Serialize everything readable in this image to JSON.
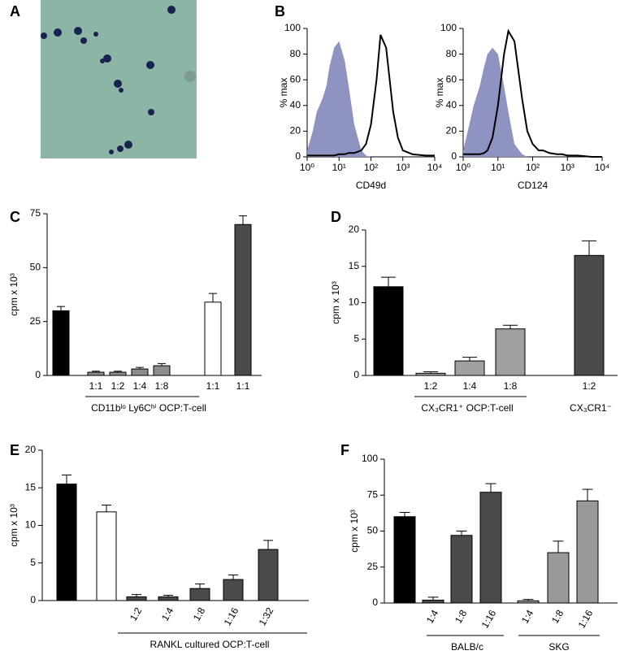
{
  "chart_data": [
    {
      "type": "image",
      "panel_label": "A"
    },
    {
      "type": "line",
      "panel_label": "B",
      "xlabel": "CD49d",
      "ylabel": "% max",
      "xscale": "log",
      "xlim": [
        1,
        10000
      ],
      "ylim": [
        0,
        100
      ],
      "xticks": [
        {
          "value": 1,
          "label": "10⁰"
        },
        {
          "value": 10,
          "label": "10¹"
        },
        {
          "value": 100,
          "label": "10²"
        },
        {
          "value": 1000,
          "label": "10³"
        },
        {
          "value": 10000,
          "label": "10⁴"
        }
      ],
      "yticks": [
        0,
        20,
        40,
        60,
        80,
        100
      ],
      "x": [
        1,
        1.5,
        2,
        3,
        4,
        5,
        7,
        10,
        15,
        20,
        30,
        50,
        70,
        100,
        150,
        200,
        300,
        500,
        700,
        1000,
        2000,
        5000,
        10000
      ],
      "series": [
        {
          "color": "#8e93c2",
          "fill": true,
          "values": [
            5,
            20,
            35,
            45,
            55,
            70,
            85,
            90,
            75,
            55,
            25,
            5,
            1,
            0,
            0,
            0,
            0,
            0,
            0,
            0,
            0,
            0,
            0
          ]
        },
        {
          "color": "#000000",
          "fill": false,
          "values": [
            1,
            1,
            1,
            1,
            1,
            1,
            1,
            2,
            2,
            3,
            3,
            5,
            10,
            25,
            60,
            95,
            85,
            35,
            15,
            5,
            2,
            1,
            1
          ]
        }
      ]
    },
    {
      "type": "line",
      "xlabel": "CD124",
      "ylabel": "% max",
      "xscale": "log",
      "xlim": [
        1,
        10000
      ],
      "ylim": [
        0,
        100
      ],
      "xticks": [
        {
          "value": 1,
          "label": "10⁰"
        },
        {
          "value": 10,
          "label": "10¹"
        },
        {
          "value": 100,
          "label": "10²"
        },
        {
          "value": 1000,
          "label": "10³"
        },
        {
          "value": 10000,
          "label": "10⁴"
        }
      ],
      "yticks": [
        0,
        20,
        40,
        60,
        80,
        100
      ],
      "x": [
        1,
        1.5,
        2,
        3,
        4,
        5,
        7,
        10,
        15,
        20,
        30,
        50,
        70,
        100,
        150,
        200,
        300,
        500,
        700,
        1000,
        2000,
        5000,
        10000
      ],
      "series": [
        {
          "color": "#8e93c2",
          "fill": true,
          "values": [
            5,
            25,
            40,
            55,
            70,
            80,
            85,
            80,
            55,
            35,
            10,
            2,
            0,
            0,
            0,
            0,
            0,
            0,
            0,
            0,
            0,
            0,
            0
          ]
        },
        {
          "color": "#000000",
          "fill": false,
          "values": [
            2,
            2,
            2,
            2,
            3,
            5,
            15,
            40,
            80,
            98,
            90,
            45,
            20,
            10,
            5,
            5,
            3,
            2,
            2,
            1,
            1,
            0,
            0
          ]
        }
      ]
    },
    {
      "type": "bar",
      "panel_label": "C",
      "ylabel": "cpm x 10³",
      "group_labels": [
        "CD11bˡᵒ Ly6Cʰⁱ OCP:T-cell"
      ],
      "categories": [
        null,
        "1:1",
        "1:2",
        "1:4",
        "1:8",
        null,
        "1:1",
        "1:1"
      ],
      "values": [
        30,
        1.5,
        1.5,
        3,
        4.5,
        null,
        34,
        70
      ],
      "errors": [
        2,
        0.5,
        0.5,
        0.7,
        1,
        null,
        4,
        4
      ],
      "colors": [
        "#000000",
        "#8c8c8c",
        "#8c8c8c",
        "#8c8c8c",
        "#8c8c8c",
        null,
        "#ffffff",
        "#4a4a4a"
      ],
      "ylim": [
        0,
        75
      ],
      "yticks": [
        0,
        25,
        50,
        75
      ],
      "rotate_labels": false
    },
    {
      "type": "bar",
      "panel_label": "D",
      "ylabel": "cpm x 10³",
      "group_labels": [
        "CX₃CR1⁺ OCP:T-cell",
        "CX₃CR1⁻"
      ],
      "categories": [
        null,
        "1:2",
        "1:4",
        "1:8",
        "1:2"
      ],
      "values": [
        12.2,
        0.3,
        2,
        6.4,
        16.5
      ],
      "errors": [
        1.3,
        0.2,
        0.5,
        0.5,
        2
      ],
      "colors": [
        "#000000",
        "#a0a0a0",
        "#a0a0a0",
        "#a0a0a0",
        "#4a4a4a"
      ],
      "ylim": [
        0,
        20
      ],
      "yticks": [
        0,
        5,
        10,
        15,
        20
      ],
      "rotate_labels": false
    },
    {
      "type": "bar",
      "panel_label": "E",
      "ylabel": "cpm x 10³",
      "group_labels": [
        "RANKL cultured OCP:T-cell"
      ],
      "categories": [
        null,
        null,
        "1:2",
        "1:4",
        "1:8",
        "1:16",
        "1:32"
      ],
      "values": [
        15.5,
        11.8,
        0.5,
        0.5,
        1.6,
        2.8,
        6.8
      ],
      "errors": [
        1.2,
        0.9,
        0.3,
        0.2,
        0.6,
        0.6,
        1.2
      ],
      "colors": [
        "#000000",
        "#ffffff",
        "#4a4a4a",
        "#4a4a4a",
        "#4a4a4a",
        "#4a4a4a",
        "#4a4a4a"
      ],
      "ylim": [
        0,
        20
      ],
      "yticks": [
        0,
        5,
        10,
        15,
        20
      ],
      "rotate_labels": true
    },
    {
      "type": "bar",
      "panel_label": "F",
      "ylabel": "cpm x 10³",
      "group_labels": [
        "BALB/c",
        "SKG"
      ],
      "categories": [
        null,
        "1:4",
        "1:8",
        "1:16",
        "1:4",
        "1:8",
        "1:16"
      ],
      "values": [
        60,
        2,
        47,
        77,
        1.5,
        35,
        71
      ],
      "errors": [
        3,
        2,
        3,
        6,
        1,
        8,
        8
      ],
      "colors": [
        "#000000",
        "#4a4a4a",
        "#4a4a4a",
        "#4a4a4a",
        "#999999",
        "#999999",
        "#999999"
      ],
      "ylim": [
        0,
        100
      ],
      "yticks": [
        0,
        25,
        50,
        75,
        100
      ],
      "rotate_labels": true
    }
  ]
}
